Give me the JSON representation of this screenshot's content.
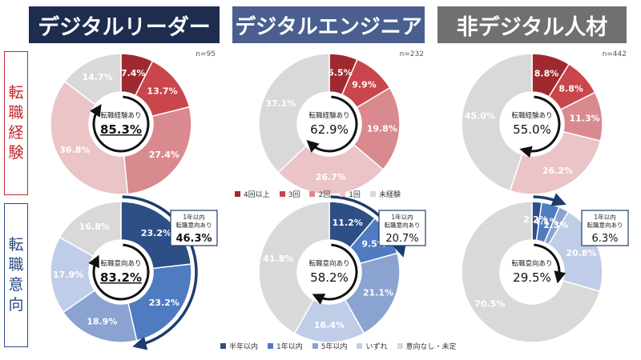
{
  "columns": [
    "デジタルリーダー",
    "デジタルエンジニア",
    "非デジタル人材"
  ],
  "rows": [
    "転職経験",
    "転職意向"
  ],
  "header_colors": [
    "#1e2d4e",
    "#4a5f8e",
    "#707070"
  ],
  "chart_data": [
    {
      "type": "pie",
      "group": "デジタルリーダー",
      "metric": "転職経験",
      "n": "n=95",
      "categories": [
        "4回以上",
        "3回",
        "2回",
        "1回",
        "未経験"
      ],
      "values": [
        7.4,
        13.7,
        27.4,
        36.8,
        14.7
      ],
      "labels": [
        "7.4%",
        "13.7%",
        "27.4%",
        "36.8%",
        "14.7%"
      ],
      "center_label": "転職経験あり",
      "center_value": "85.3%"
    },
    {
      "type": "pie",
      "group": "デジタルエンジニア",
      "metric": "転職経験",
      "n": "n=232",
      "categories": [
        "4回以上",
        "3回",
        "2回",
        "1回",
        "未経験"
      ],
      "values": [
        6.5,
        9.9,
        19.8,
        26.7,
        37.1
      ],
      "labels": [
        "6.5%",
        "9.9%",
        "19.8%",
        "26.7%",
        "37.1%"
      ],
      "center_label": "転職経験あり",
      "center_value": "62.9%"
    },
    {
      "type": "pie",
      "group": "非デジタル人材",
      "metric": "転職経験",
      "n": "n=442",
      "categories": [
        "4回以上",
        "3回",
        "2回",
        "1回",
        "未経験"
      ],
      "values": [
        8.8,
        8.8,
        11.3,
        26.2,
        45.0
      ],
      "labels": [
        "8.8%",
        "8.8%",
        "11.3%",
        "26.2%",
        "45.0%"
      ],
      "center_label": "転職経験あり",
      "center_value": "55.0%"
    },
    {
      "type": "pie",
      "group": "デジタルリーダー",
      "metric": "転職意向",
      "categories": [
        "半年以内",
        "1年以内",
        "5年以内",
        "いずれ",
        "意向なし・未定"
      ],
      "values": [
        23.2,
        23.2,
        18.9,
        17.9,
        16.8
      ],
      "labels": [
        "23.2%",
        "23.2%",
        "18.9%",
        "17.9%",
        "16.8%"
      ],
      "center_label": "転職意向あり",
      "center_value": "83.2%",
      "callout_label": "1年以内\n転職意向あり",
      "callout_value": "46.3%"
    },
    {
      "type": "pie",
      "group": "デジタルエンジニア",
      "metric": "転職意向",
      "categories": [
        "半年以内",
        "1年以内",
        "5年以内",
        "いずれ",
        "意向なし・未定"
      ],
      "values": [
        11.2,
        9.5,
        21.1,
        16.4,
        41.8
      ],
      "labels": [
        "11.2%",
        "9.5%",
        "21.1%",
        "16.4%",
        "41.8%"
      ],
      "center_label": "転職意向あり",
      "center_value": "58.2%",
      "callout_label": "1年以内\n転職意向あり",
      "callout_value": "20.7%"
    },
    {
      "type": "pie",
      "group": "非デジタル人材",
      "metric": "転職意向",
      "categories": [
        "半年以内",
        "1年以内",
        "5年以内",
        "いずれ",
        "意向なし・未定"
      ],
      "values": [
        2.2,
        4.1,
        2.3,
        20.8,
        70.5
      ],
      "labels": [
        "2.2%",
        "4.1%",
        "2.3%",
        "20.8%",
        "70.5%"
      ],
      "center_label": "転職意向あり",
      "center_value": "29.5%",
      "callout_label": "1年以内\n転職意向あり",
      "callout_value": "6.3%"
    }
  ],
  "legends": {
    "experience": {
      "items": [
        "4回以上",
        "3回",
        "2回",
        "1回",
        "未経験"
      ],
      "colors": [
        "#9e2a2f",
        "#c9464c",
        "#d98a8f",
        "#eac4c7",
        "#d9d9d9"
      ]
    },
    "intention": {
      "items": [
        "半年以内",
        "1年以内",
        "5年以内",
        "いずれ",
        "意向なし・未定"
      ],
      "colors": [
        "#2e4f86",
        "#4f7bc0",
        "#8aa3d1",
        "#c0cde8",
        "#d9d9d9"
      ]
    }
  }
}
